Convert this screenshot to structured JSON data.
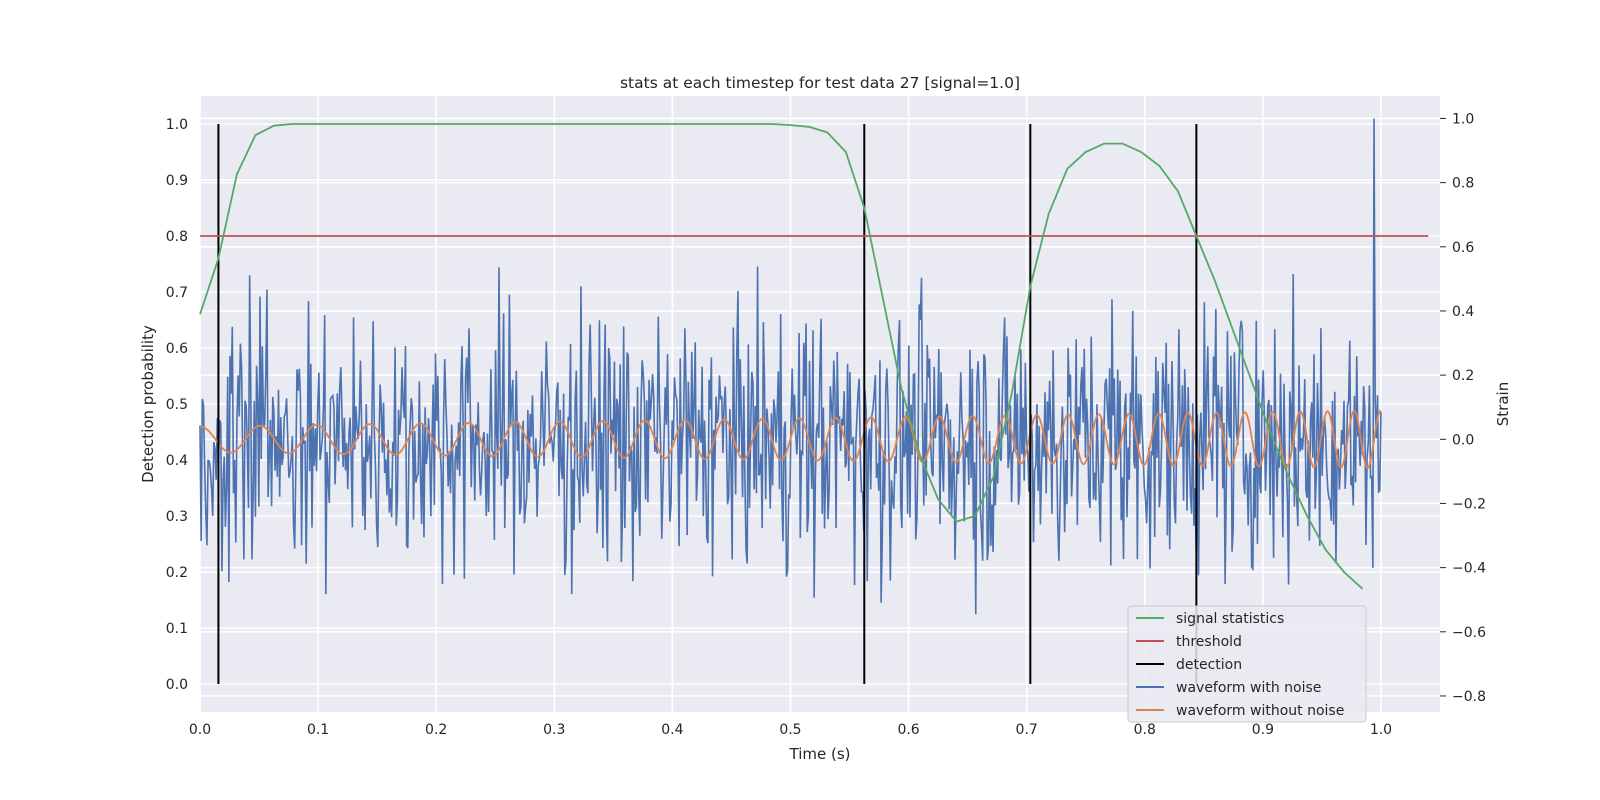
{
  "chart_data": {
    "type": "line",
    "title": "stats at each timestep for test data 27 [signal=1.0]",
    "xlabel": "Time (s)",
    "ylabel": "Detection probability",
    "y2label": "Strain",
    "xlim": [
      0.0,
      1.05
    ],
    "ylim": [
      -0.05,
      1.05
    ],
    "y2lim": [
      -0.85,
      1.07
    ],
    "grid": true,
    "legend_position": "lower-right",
    "xticks": [
      "0.0",
      "0.1",
      "0.2",
      "0.3",
      "0.4",
      "0.5",
      "0.6",
      "0.7",
      "0.8",
      "0.9",
      "1.0"
    ],
    "yticks": [
      "0.0",
      "0.1",
      "0.2",
      "0.3",
      "0.4",
      "0.5",
      "0.6",
      "0.7",
      "0.8",
      "0.9",
      "1.0"
    ],
    "y2ticks": [
      "−0.8",
      "−0.6",
      "−0.4",
      "−0.2",
      "0.0",
      "0.2",
      "0.4",
      "0.6",
      "0.8",
      "1.0"
    ],
    "series": [
      {
        "name": "signal statistics",
        "axis": "left",
        "color": "#55a868",
        "x": [
          0.0,
          0.0156,
          0.0312,
          0.0469,
          0.0625,
          0.0781,
          0.0937,
          0.1094,
          0.125,
          0.1406,
          0.1562,
          0.1719,
          0.1875,
          0.2031,
          0.2187,
          0.2344,
          0.25,
          0.2656,
          0.2812,
          0.2969,
          0.3125,
          0.3281,
          0.3437,
          0.3594,
          0.375,
          0.3906,
          0.4062,
          0.4219,
          0.4375,
          0.4531,
          0.4687,
          0.4844,
          0.5,
          0.5156,
          0.5312,
          0.5469,
          0.5625,
          0.5781,
          0.5937,
          0.6094,
          0.625,
          0.6406,
          0.6562,
          0.6719,
          0.6875,
          0.7031,
          0.7187,
          0.7344,
          0.75,
          0.7656,
          0.7812,
          0.7969,
          0.8125,
          0.8281,
          0.8437,
          0.8594,
          0.875,
          0.8906,
          0.9062,
          0.9219,
          0.9375,
          0.9531,
          0.9687,
          0.9844
        ],
        "values": [
          0.66,
          0.76,
          0.91,
          0.98,
          0.997,
          1.0,
          1.0,
          1.0,
          1.0,
          1.0,
          1.0,
          1.0,
          1.0,
          1.0,
          1.0,
          1.0,
          1.0,
          1.0,
          1.0,
          1.0,
          1.0,
          1.0,
          1.0,
          1.0,
          1.0,
          1.0,
          1.0,
          1.0,
          1.0,
          1.0,
          1.0,
          1.0,
          0.998,
          0.995,
          0.985,
          0.95,
          0.85,
          0.69,
          0.53,
          0.41,
          0.33,
          0.29,
          0.3,
          0.37,
          0.52,
          0.71,
          0.84,
          0.92,
          0.95,
          0.965,
          0.965,
          0.95,
          0.925,
          0.88,
          0.8,
          0.72,
          0.63,
          0.54,
          0.45,
          0.37,
          0.3,
          0.24,
          0.2,
          0.17
        ]
      },
      {
        "name": "threshold",
        "axis": "left",
        "color": "#c44e52",
        "x": [
          0.0,
          1.04
        ],
        "values": [
          0.8,
          0.8
        ]
      },
      {
        "name": "detection",
        "axis": "left",
        "color": "#000000",
        "x": [
          0.0156,
          0.5625,
          0.7031,
          0.8437
        ],
        "values": [
          1.0,
          1.0,
          1.0,
          1.0
        ]
      },
      {
        "name": "waveform with noise",
        "axis": "right",
        "color": "#4c72b0",
        "x_range": [
          0.0,
          1.0
        ],
        "n_points": 1024,
        "approx_amplitude": 0.28,
        "min": -0.77,
        "max": 1.0
      },
      {
        "name": "waveform without noise",
        "axis": "right",
        "color": "#dd8452",
        "x_range": [
          0.0,
          1.0
        ],
        "start_amplitude": 0.04,
        "end_amplitude": 0.09,
        "start_frequency_hz": 19,
        "end_frequency_hz": 45
      }
    ]
  }
}
